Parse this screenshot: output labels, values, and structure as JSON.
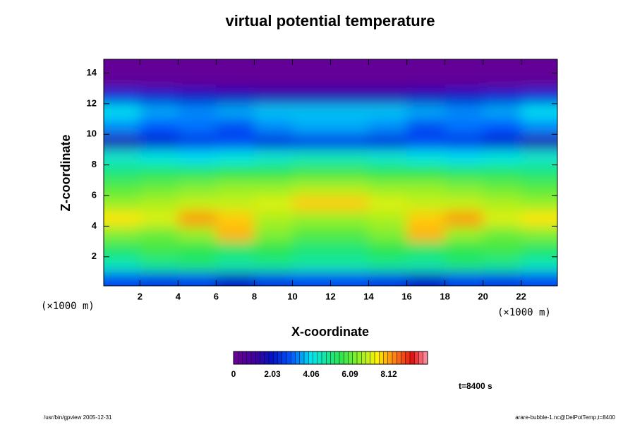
{
  "chart_data": {
    "type": "heatmap",
    "title": "virtual potential temperature",
    "x_label": "X-coordinate",
    "y_label": "Z-coordinate",
    "x_unit": "(×1000 m)",
    "y_unit": "(×1000 m)",
    "time_label": "t=8400 s",
    "footer_left": "/usr/bin/gpview 2005-12-31",
    "footer_right": "arare-bubble-1.nc@DelPotTemp,t=8400",
    "xlim": [
      0.1,
      23.9
    ],
    "ylim": [
      0.1,
      14.9
    ],
    "xticks": [
      2,
      4,
      6,
      8,
      10,
      12,
      14,
      16,
      18,
      20,
      22
    ],
    "yticks": [
      2,
      4,
      6,
      8,
      10,
      12,
      14
    ],
    "x": [
      1,
      3,
      5,
      7,
      9,
      11,
      13,
      15,
      17,
      19,
      21,
      23
    ],
    "y": [
      0.5,
      1.5,
      2.5,
      3.5,
      4.5,
      5.5,
      6.5,
      7.5,
      8.5,
      9.5,
      10.5,
      11.5,
      12.5,
      13.5,
      14.5
    ],
    "z": [
      [
        2.8,
        2.6,
        2.7,
        2.0,
        2.6,
        2.8,
        2.8,
        2.6,
        2.0,
        2.7,
        2.6,
        2.8
      ],
      [
        4.6,
        5.0,
        5.2,
        4.8,
        5.0,
        4.8,
        4.8,
        5.0,
        4.8,
        5.2,
        5.0,
        4.6
      ],
      [
        5.4,
        5.8,
        5.6,
        5.4,
        5.6,
        5.2,
        5.2,
        5.6,
        5.4,
        5.6,
        5.8,
        5.4
      ],
      [
        6.4,
        6.2,
        6.6,
        8.0,
        6.4,
        6.0,
        6.0,
        6.4,
        8.0,
        6.6,
        6.2,
        6.4
      ],
      [
        7.6,
        7.2,
        8.2,
        7.8,
        6.8,
        6.6,
        6.6,
        6.8,
        7.8,
        8.2,
        7.2,
        7.6
      ],
      [
        6.6,
        6.8,
        7.0,
        7.0,
        7.2,
        7.8,
        7.8,
        7.2,
        7.0,
        7.0,
        6.8,
        6.6
      ],
      [
        6.0,
        6.2,
        6.4,
        6.6,
        6.6,
        6.8,
        6.8,
        6.6,
        6.6,
        6.4,
        6.2,
        6.0
      ],
      [
        5.2,
        5.4,
        5.4,
        5.6,
        5.6,
        5.8,
        5.8,
        5.6,
        5.6,
        5.4,
        5.4,
        5.2
      ],
      [
        4.4,
        4.2,
        4.0,
        4.2,
        4.4,
        4.6,
        4.6,
        4.4,
        4.2,
        4.0,
        4.2,
        4.4
      ],
      [
        1.6,
        2.2,
        2.6,
        2.8,
        2.4,
        2.6,
        2.6,
        2.4,
        2.8,
        2.6,
        2.2,
        1.6
      ],
      [
        3.4,
        3.0,
        3.2,
        2.8,
        3.4,
        3.6,
        3.6,
        3.4,
        2.8,
        3.2,
        3.0,
        3.4
      ],
      [
        4.0,
        3.6,
        3.4,
        3.6,
        3.8,
        3.8,
        3.8,
        3.8,
        3.6,
        3.4,
        3.6,
        4.0
      ],
      [
        2.4,
        2.2,
        2.0,
        1.8,
        1.6,
        1.6,
        1.6,
        1.6,
        1.8,
        2.0,
        2.2,
        2.4
      ],
      [
        0.3,
        0.3,
        0.3,
        0.3,
        0.3,
        0.3,
        0.3,
        0.3,
        0.3,
        0.3,
        0.3,
        0.3
      ],
      [
        0.3,
        0.3,
        0.3,
        0.3,
        0.3,
        0.3,
        0.3,
        0.3,
        0.3,
        0.3,
        0.3,
        0.3
      ]
    ],
    "colorbar_lim": [
      0,
      10.15
    ],
    "colorbar_ticks": [
      0,
      2.03,
      4.06,
      6.09,
      8.12
    ]
  }
}
